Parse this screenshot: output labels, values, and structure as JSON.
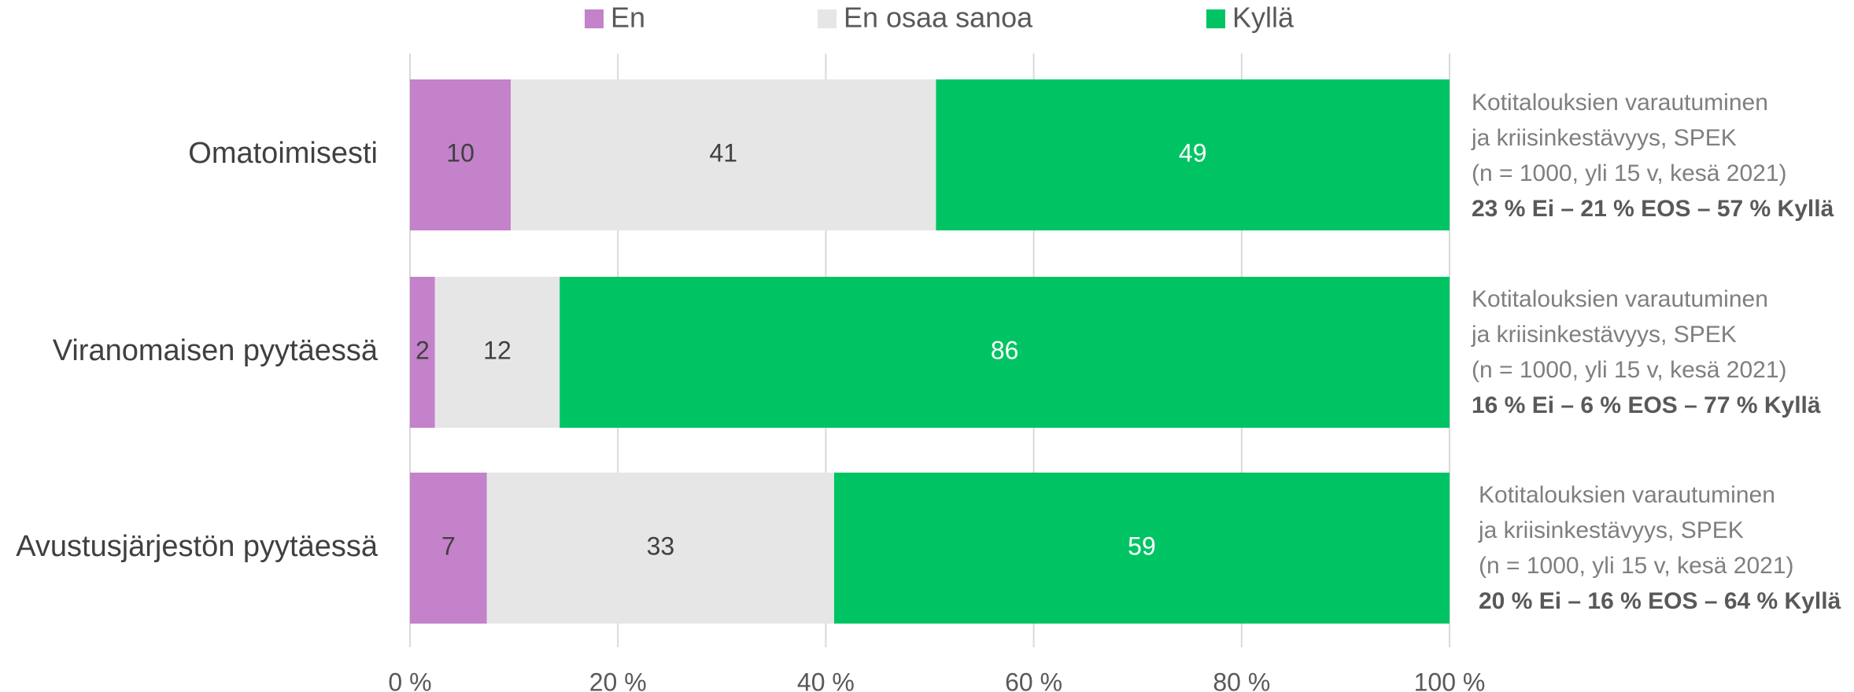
{
  "chart_data": {
    "type": "stacked_barh",
    "categories": [
      "Omatoimisesti",
      "Viranomaisen pyytäessä",
      "Avustusjärjestön pyytäessä"
    ],
    "series": [
      {
        "name": "En",
        "color": "#c382c9",
        "values": [
          9.7,
          2.4,
          7.4
        ],
        "value_labels": [
          "10",
          "2",
          "7"
        ]
      },
      {
        "name": "En osaa sanoa",
        "color": "#e6e6e6",
        "values": [
          40.9,
          12.0,
          33.4
        ],
        "value_labels": [
          "41",
          "12",
          "33"
        ]
      },
      {
        "name": "Kyllä",
        "color": "#00c464",
        "values": [
          49.4,
          85.6,
          59.2
        ],
        "value_labels": [
          "49",
          "86",
          "59"
        ]
      }
    ],
    "xlim": [
      0,
      100
    ],
    "xticks": [
      {
        "value": 0,
        "label": "0 %"
      },
      {
        "value": 20,
        "label": "20 %"
      },
      {
        "value": 40,
        "label": "40 %"
      },
      {
        "value": 60,
        "label": "60 %"
      },
      {
        "value": 80,
        "label": "80 %"
      },
      {
        "value": 100,
        "label": "100 %"
      }
    ],
    "grid": true,
    "legend": "top",
    "annotations": [
      {
        "lines": [
          "Kotitalouksien varautuminen",
          "ja kriisinkestävyys, SPEK",
          "(n = 1000, yli 15 v, kesä 2021)"
        ],
        "highlight": "23 % Ei – 21 % EOS – 57 % Kyllä"
      },
      {
        "lines": [
          "Kotitalouksien varautuminen",
          "ja kriisinkestävyys, SPEK",
          "(n = 1000, yli 15 v, kesä 2021)"
        ],
        "highlight": "16 % Ei – 6 % EOS – 77 % Kyllä"
      },
      {
        "lines": [
          "Kotitalouksien varautuminen",
          "ja kriisinkestävyys, SPEK",
          "(n = 1000, yli 15 v, kesä 2021)"
        ],
        "highlight": "20 % Ei – 16 % EOS – 64 % Kyllä"
      }
    ]
  }
}
